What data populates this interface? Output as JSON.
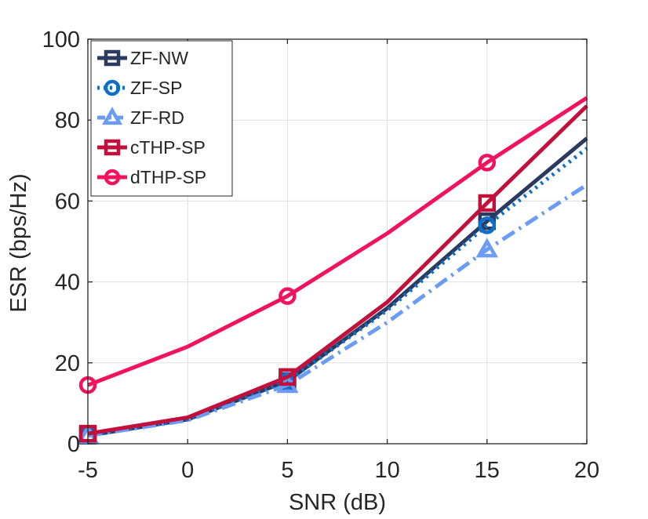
{
  "chart_data": {
    "type": "line",
    "title": "",
    "xlabel": "SNR (dB)",
    "ylabel": "ESR (bps/Hz)",
    "x": [
      -5,
      0,
      5,
      10,
      15,
      20
    ],
    "xticks": [
      "-5",
      "0",
      "5",
      "10",
      "15",
      "20"
    ],
    "yticks": [
      "0",
      "20",
      "40",
      "60",
      "80",
      "100"
    ],
    "xlim": [
      -5,
      20
    ],
    "ylim": [
      0,
      100
    ],
    "grid": true,
    "legend_position": "top-left",
    "series": [
      {
        "name": "ZF-NW",
        "color": "#2b3a5f",
        "dash": "solid",
        "marker": "square",
        "values": [
          2.0,
          6.0,
          15.5,
          33.5,
          55.0,
          75.5
        ],
        "marker_x": [
          -5,
          5,
          15
        ]
      },
      {
        "name": "ZF-SP",
        "color": "#0f6fc6",
        "dash": "dotted",
        "marker": "circle",
        "values": [
          2.0,
          6.0,
          15.5,
          33.0,
          54.0,
          73.0
        ],
        "marker_x": [
          -5,
          5,
          15
        ]
      },
      {
        "name": "ZF-RD",
        "color": "#6b9cf2",
        "dash": "dashdot",
        "marker": "triangle",
        "values": [
          2.0,
          5.8,
          14.5,
          30.0,
          48.0,
          64.0
        ],
        "marker_x": [
          -5,
          5,
          15
        ]
      },
      {
        "name": "cTHP-SP",
        "color": "#c2103c",
        "dash": "solid",
        "marker": "square",
        "values": [
          2.5,
          6.5,
          16.5,
          35.0,
          59.5,
          83.5
        ],
        "marker_x": [
          -5,
          5,
          15
        ]
      },
      {
        "name": "dTHP-SP",
        "color": "#f2135f",
        "dash": "solid",
        "marker": "circle",
        "values": [
          14.5,
          24.0,
          36.5,
          52.0,
          69.5,
          85.5
        ],
        "marker_x": [
          -5,
          5,
          15
        ]
      }
    ]
  }
}
